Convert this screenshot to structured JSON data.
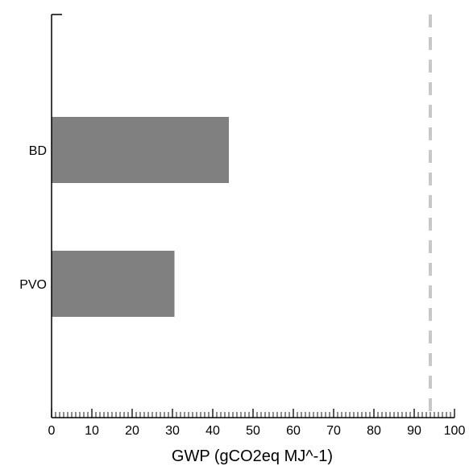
{
  "chart_data": {
    "type": "bar",
    "orientation": "horizontal",
    "categories": [
      "BD",
      "PVO"
    ],
    "values": [
      44,
      30.5
    ],
    "xlabel": "GWP (gCO2eq MJ^-1)",
    "ylabel": "",
    "xlim": [
      0,
      100
    ],
    "major_ticks": [
      0,
      10,
      20,
      30,
      40,
      50,
      60,
      70,
      80,
      90,
      100
    ],
    "minor_tick_step": 1,
    "bar_color": "#808080",
    "reference_line": {
      "x": 94,
      "style": "dashed",
      "color": "#c8c8c8"
    },
    "grid": false,
    "legend": "none"
  }
}
